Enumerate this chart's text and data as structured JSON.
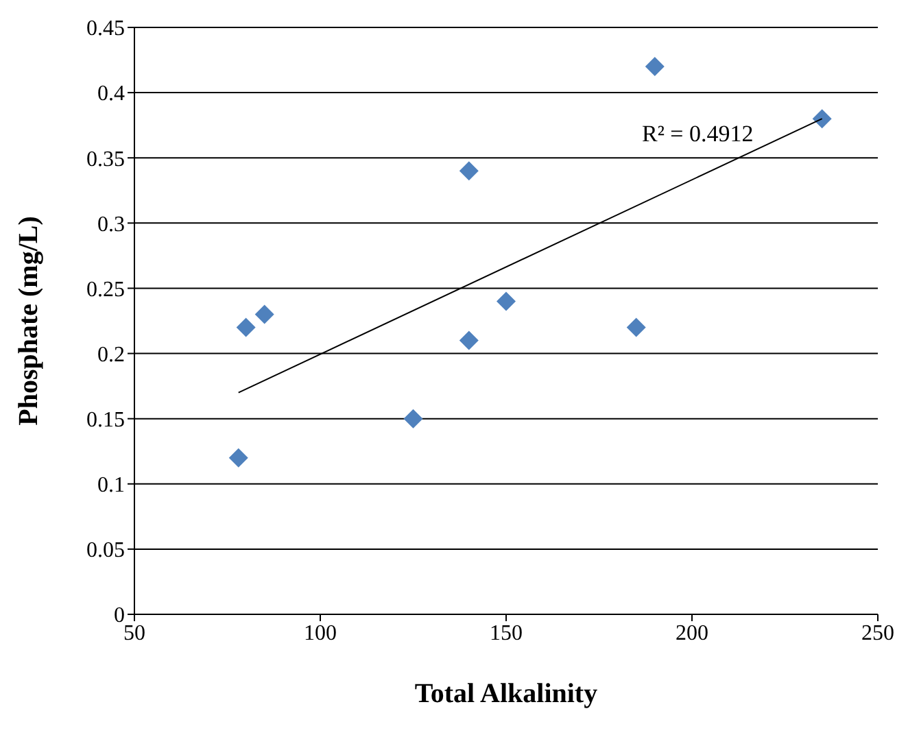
{
  "chart_data": {
    "type": "scatter",
    "xlabel": "Total Alkalinity",
    "ylabel": "Phosphate  (mg/L)",
    "xlim": [
      50,
      250
    ],
    "xticks": [
      50,
      100,
      150,
      200,
      250
    ],
    "ylim": [
      0,
      0.45
    ],
    "yticks": [
      0,
      0.05,
      0.1,
      0.15,
      0.2,
      0.25,
      0.3,
      0.35,
      0.4,
      0.45
    ],
    "grid": "y",
    "marker": "diamond",
    "annotations": [
      "R² = 0.4912"
    ],
    "series": [
      {
        "color": "#4f81bd",
        "x": [
          78,
          80,
          85,
          125,
          140,
          140,
          150,
          185,
          190,
          235
        ],
        "values": [
          0.12,
          0.22,
          0.23,
          0.15,
          0.34,
          0.21,
          0.24,
          0.22,
          0.42,
          0.38
        ]
      },
      {
        "type": "line",
        "color": "#000000",
        "x": [
          78,
          235
        ],
        "values": [
          0.17,
          0.38
        ],
        "marker": "none"
      }
    ]
  }
}
